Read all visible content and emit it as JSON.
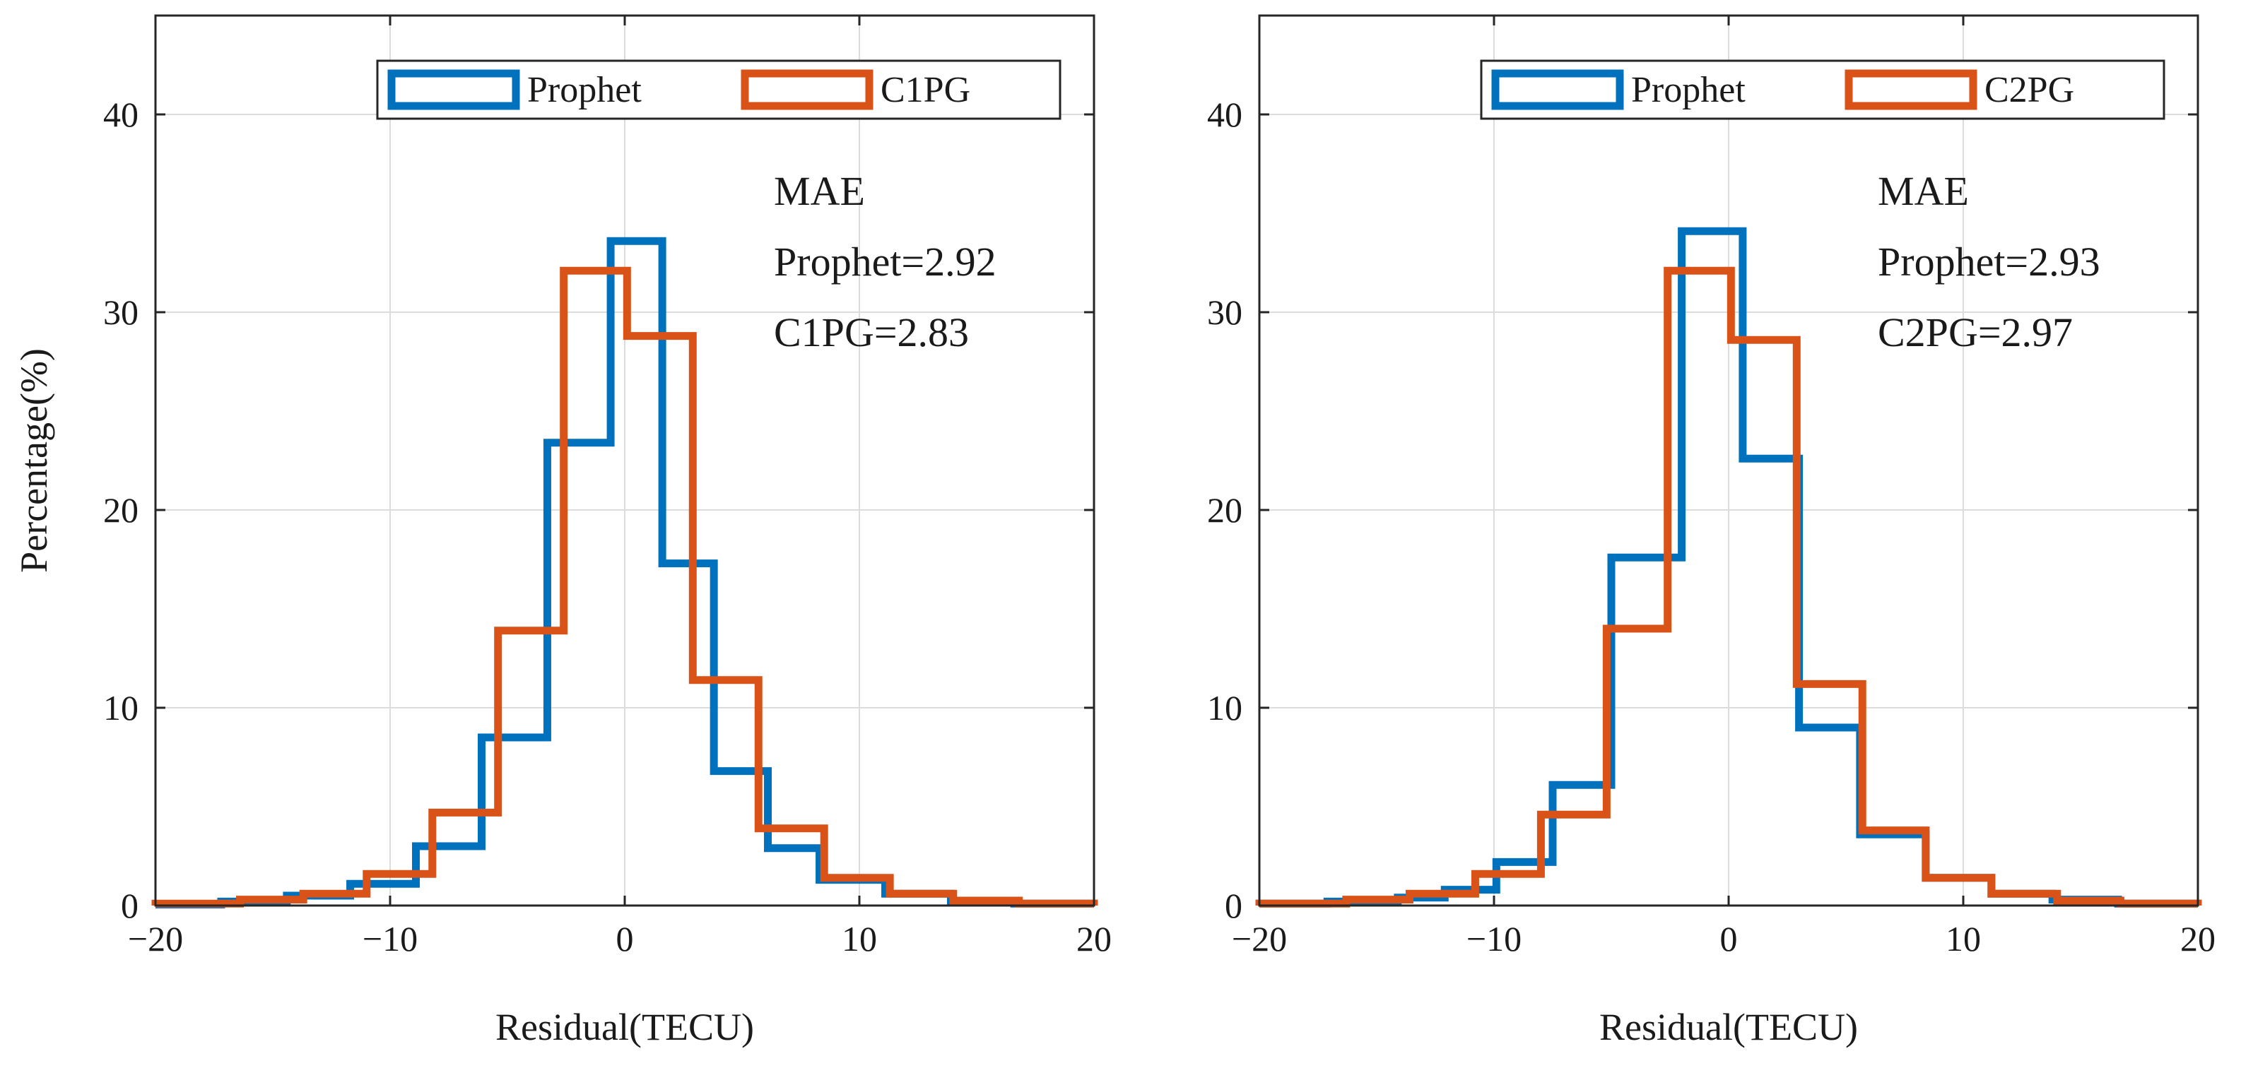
{
  "chart_data": [
    {
      "type": "histogram",
      "title": "",
      "xlabel": "Residual(TECU)",
      "ylabel": "Percentage(%)",
      "xlim": [
        -20,
        20
      ],
      "ylim": [
        0,
        45
      ],
      "xticks": [
        "−20",
        "−10",
        "0",
        "10",
        "20"
      ],
      "yticks": [
        "0",
        "10",
        "20",
        "30",
        "40"
      ],
      "xtick_values": [
        -20,
        -10,
        0,
        10,
        20
      ],
      "ytick_values": [
        0,
        10,
        20,
        30,
        40
      ],
      "grid": true,
      "legend_position": "top-right",
      "series": [
        {
          "name": "Prophet",
          "color": "#0072BD",
          "bin_edges": [
            -20,
            -17.2,
            -14.4,
            -11.7,
            -8.9,
            -6.1,
            -3.3,
            -0.6,
            1.6,
            3.8,
            6.1,
            8.3,
            11.1,
            13.9,
            16.6,
            20
          ],
          "values": [
            0.05,
            0.2,
            0.5,
            1.1,
            3.0,
            8.5,
            23.4,
            33.6,
            17.3,
            6.8,
            2.9,
            1.3,
            0.6,
            0.25,
            0.1
          ]
        },
        {
          "name": "C1PG",
          "color": "#D95319",
          "bin_edges": [
            -20,
            -16.4,
            -13.7,
            -11.0,
            -8.2,
            -5.4,
            -2.6,
            0.1,
            2.9,
            5.7,
            8.5,
            11.3,
            14.0,
            16.8,
            20
          ],
          "values": [
            0.1,
            0.3,
            0.6,
            1.6,
            4.7,
            13.9,
            32.1,
            28.8,
            11.4,
            3.9,
            1.4,
            0.6,
            0.25,
            0.1
          ]
        }
      ],
      "annotation": {
        "lines": [
          "MAE",
          "Prophet=2.92",
          "C1PG=2.83"
        ]
      }
    },
    {
      "type": "histogram",
      "title": "",
      "xlabel": "Residual(TECU)",
      "ylabel": "",
      "xlim": [
        -20,
        20
      ],
      "ylim": [
        0,
        45
      ],
      "xticks": [
        "−20",
        "−10",
        "0",
        "10",
        "20"
      ],
      "yticks": [
        "0",
        "10",
        "20",
        "30",
        "40"
      ],
      "xtick_values": [
        -20,
        -10,
        0,
        10,
        20
      ],
      "ytick_values": [
        0,
        10,
        20,
        30,
        40
      ],
      "grid": true,
      "legend_position": "top-right",
      "series": [
        {
          "name": "Prophet",
          "color": "#0072BD",
          "bin_edges": [
            -20,
            -17.1,
            -14.1,
            -12.1,
            -9.9,
            -7.5,
            -5.0,
            -2.0,
            0.6,
            3.0,
            5.6,
            8.4,
            11.2,
            13.8,
            16.6,
            20
          ],
          "values": [
            0.1,
            0.2,
            0.4,
            0.8,
            2.2,
            6.1,
            17.6,
            34.1,
            22.6,
            9.0,
            3.6,
            1.4,
            0.6,
            0.3,
            0.1
          ]
        },
        {
          "name": "C2PG",
          "color": "#D95319",
          "bin_edges": [
            -20,
            -16.3,
            -13.6,
            -10.8,
            -8.0,
            -5.2,
            -2.6,
            0.1,
            2.9,
            5.7,
            8.4,
            11.2,
            14.0,
            16.7,
            20
          ],
          "values": [
            0.1,
            0.3,
            0.6,
            1.6,
            4.6,
            14.0,
            32.1,
            28.6,
            11.2,
            3.8,
            1.4,
            0.6,
            0.25,
            0.1
          ]
        }
      ],
      "annotation": {
        "lines": [
          "MAE",
          "Prophet=2.93",
          "C2PG=2.97"
        ]
      }
    }
  ]
}
